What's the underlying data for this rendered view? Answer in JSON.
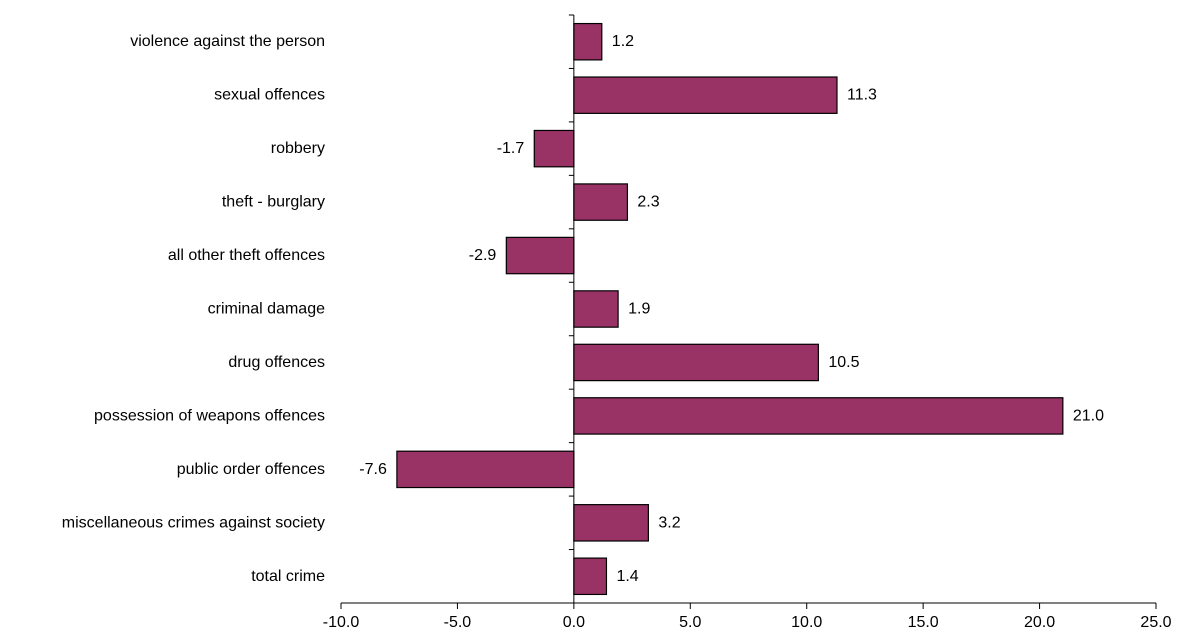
{
  "chart_data": {
    "type": "bar",
    "orientation": "horizontal",
    "title": "",
    "xlabel": "",
    "ylabel": "",
    "categories": [
      "violence against the person",
      "sexual offences",
      "robbery",
      "theft - burglary",
      "all other theft offences",
      "criminal damage",
      "drug offences",
      "possession of weapons offences",
      "public order offences",
      "miscellaneous crimes against society",
      "total crime"
    ],
    "values": [
      1.2,
      11.3,
      -1.7,
      2.3,
      -2.9,
      1.9,
      10.5,
      21.0,
      -7.6,
      3.2,
      1.4
    ],
    "data_labels": [
      "1.2",
      "11.3",
      "-1.7",
      "2.3",
      "-2.9",
      "1.9",
      "10.5",
      "21.0",
      "-7.6",
      "3.2",
      "1.4"
    ],
    "xlim": [
      -10,
      25
    ],
    "xticks": [
      -10,
      -5,
      0,
      5,
      10,
      15,
      20,
      25
    ],
    "xtick_labels": [
      "-10.0",
      "-5.0",
      "0.0",
      "5.0",
      "10.0",
      "15.0",
      "20.0",
      "25.0"
    ],
    "grid": false,
    "legend": "none",
    "bar_color": "#993366",
    "bar_edge_color": "#000000"
  }
}
